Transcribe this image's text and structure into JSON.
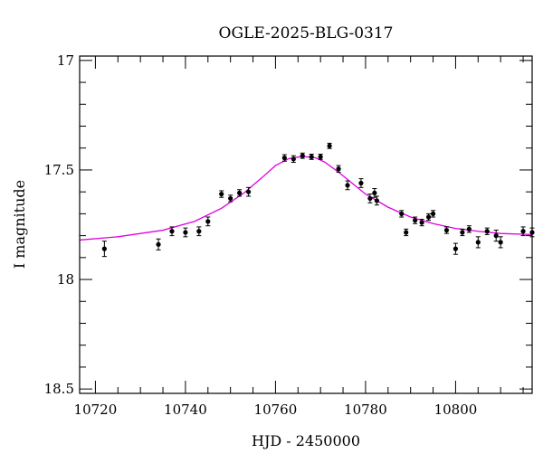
{
  "chart_data": {
    "type": "scatter",
    "title": "OGLE-2025-BLG-0317",
    "xlabel": "HJD - 2450000",
    "ylabel": "I magnitude",
    "xlim": [
      10716.5,
      10817
    ],
    "ylim": [
      18.52,
      16.98
    ],
    "y_inverted": true,
    "grid": false,
    "xticks": {
      "major": [
        10720,
        10740,
        10760,
        10780,
        10800
      ],
      "minor_step": 5,
      "labels": [
        "10720",
        "10740",
        "10760",
        "10780",
        "10800"
      ]
    },
    "yticks": {
      "major": [
        17.0,
        17.5,
        18.0,
        18.5
      ],
      "minor_step": 0.1,
      "labels": [
        "17",
        "17.5",
        "18",
        "18.5"
      ]
    },
    "colors": {
      "data": "#000000",
      "model": "#e000e0"
    },
    "model": {
      "name": "",
      "color": "#e000e0",
      "x": [
        10716.5,
        10725,
        10735,
        10742,
        10748,
        10753,
        10757,
        10760,
        10763,
        10766,
        10769,
        10771,
        10774,
        10777,
        10780,
        10785,
        10790,
        10795,
        10800,
        10805,
        10810,
        10817
      ],
      "y": [
        17.82,
        17.805,
        17.775,
        17.735,
        17.675,
        17.605,
        17.535,
        17.48,
        17.448,
        17.438,
        17.445,
        17.465,
        17.51,
        17.56,
        17.61,
        17.67,
        17.715,
        17.745,
        17.767,
        17.78,
        17.79,
        17.795
      ]
    },
    "series": [
      {
        "name": "",
        "color": "#000000",
        "points": [
          {
            "x": 10722.0,
            "y": 17.86,
            "err": 0.035
          },
          {
            "x": 10734.0,
            "y": 17.84,
            "err": 0.025
          },
          {
            "x": 10737.0,
            "y": 17.78,
            "err": 0.02
          },
          {
            "x": 10740.0,
            "y": 17.785,
            "err": 0.02
          },
          {
            "x": 10743.0,
            "y": 17.78,
            "err": 0.02
          },
          {
            "x": 10745.0,
            "y": 17.735,
            "err": 0.02
          },
          {
            "x": 10748.0,
            "y": 17.61,
            "err": 0.015
          },
          {
            "x": 10750.0,
            "y": 17.63,
            "err": 0.015
          },
          {
            "x": 10752.0,
            "y": 17.605,
            "err": 0.015
          },
          {
            "x": 10754.0,
            "y": 17.6,
            "err": 0.02
          },
          {
            "x": 10762.0,
            "y": 17.445,
            "err": 0.015
          },
          {
            "x": 10764.0,
            "y": 17.45,
            "err": 0.015
          },
          {
            "x": 10766.0,
            "y": 17.435,
            "err": 0.012
          },
          {
            "x": 10768.0,
            "y": 17.44,
            "err": 0.012
          },
          {
            "x": 10770.0,
            "y": 17.44,
            "err": 0.012
          },
          {
            "x": 10772.0,
            "y": 17.39,
            "err": 0.012
          },
          {
            "x": 10774.0,
            "y": 17.495,
            "err": 0.015
          },
          {
            "x": 10776.0,
            "y": 17.57,
            "err": 0.02
          },
          {
            "x": 10779.0,
            "y": 17.56,
            "err": 0.02
          },
          {
            "x": 10781.0,
            "y": 17.63,
            "err": 0.02
          },
          {
            "x": 10782.0,
            "y": 17.605,
            "err": 0.02
          },
          {
            "x": 10782.5,
            "y": 17.64,
            "err": 0.02
          },
          {
            "x": 10788.0,
            "y": 17.7,
            "err": 0.015
          },
          {
            "x": 10789.0,
            "y": 17.785,
            "err": 0.015
          },
          {
            "x": 10791.0,
            "y": 17.73,
            "err": 0.015
          },
          {
            "x": 10792.5,
            "y": 17.74,
            "err": 0.015
          },
          {
            "x": 10794.0,
            "y": 17.715,
            "err": 0.015
          },
          {
            "x": 10795.0,
            "y": 17.7,
            "err": 0.015
          },
          {
            "x": 10798.0,
            "y": 17.775,
            "err": 0.015
          },
          {
            "x": 10800.0,
            "y": 17.86,
            "err": 0.025
          },
          {
            "x": 10801.5,
            "y": 17.785,
            "err": 0.015
          },
          {
            "x": 10803.0,
            "y": 17.77,
            "err": 0.015
          },
          {
            "x": 10805.0,
            "y": 17.83,
            "err": 0.025
          },
          {
            "x": 10807.0,
            "y": 17.78,
            "err": 0.015
          },
          {
            "x": 10809.0,
            "y": 17.8,
            "err": 0.025
          },
          {
            "x": 10810.0,
            "y": 17.83,
            "err": 0.025
          },
          {
            "x": 10815.0,
            "y": 17.78,
            "err": 0.02
          },
          {
            "x": 10817.0,
            "y": 17.785,
            "err": 0.02
          }
        ]
      }
    ]
  }
}
